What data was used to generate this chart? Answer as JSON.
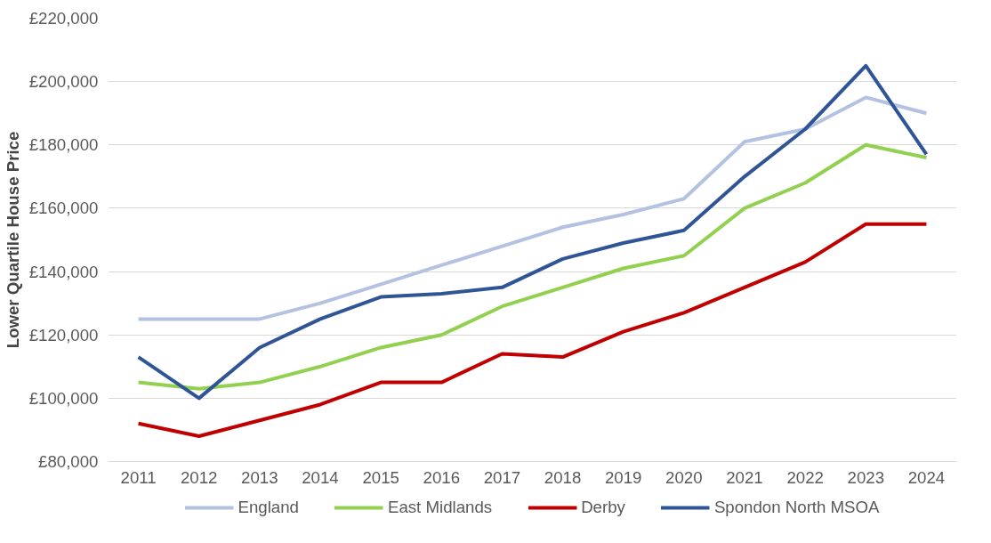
{
  "chart_data": {
    "type": "line",
    "ylabel": "Lower Quartile House Price",
    "categories": [
      "2011",
      "2012",
      "2013",
      "2014",
      "2015",
      "2016",
      "2017",
      "2018",
      "2019",
      "2020",
      "2021",
      "2022",
      "2023",
      "2024"
    ],
    "series": [
      {
        "name": "England",
        "color": "#b4c2e2",
        "values": [
          125000,
          125000,
          125000,
          130000,
          136000,
          142000,
          148000,
          154000,
          158000,
          163000,
          181000,
          185000,
          195000,
          190000
        ]
      },
      {
        "name": "East Midlands",
        "color": "#92d050",
        "values": [
          105000,
          103000,
          105000,
          110000,
          116000,
          120000,
          129000,
          135000,
          141000,
          145000,
          160000,
          168000,
          180000,
          176000
        ]
      },
      {
        "name": "Derby",
        "color": "#c00000",
        "values": [
          92000,
          88000,
          93000,
          98000,
          105000,
          105000,
          114000,
          113000,
          121000,
          127000,
          135000,
          143000,
          155000,
          155000
        ]
      },
      {
        "name": "Spondon North MSOA",
        "color": "#2f5597",
        "values": [
          113000,
          100000,
          116000,
          125000,
          132000,
          133000,
          135000,
          144000,
          149000,
          153000,
          170000,
          185000,
          205000,
          177000
        ]
      }
    ],
    "ylim": [
      80000,
      220000
    ],
    "yticks": [
      {
        "value": 80000,
        "label": "£80,000"
      },
      {
        "value": 100000,
        "label": "£100,000"
      },
      {
        "value": 120000,
        "label": "£120,000"
      },
      {
        "value": 140000,
        "label": "£140,000"
      },
      {
        "value": 160000,
        "label": "£160,000"
      },
      {
        "value": 180000,
        "label": "£180,000"
      },
      {
        "value": 200000,
        "label": "£200,000"
      },
      {
        "value": 220000,
        "label": "£220,000"
      }
    ],
    "grid": "y",
    "legend": "bottom",
    "marker": "none",
    "line_style": "solid"
  }
}
